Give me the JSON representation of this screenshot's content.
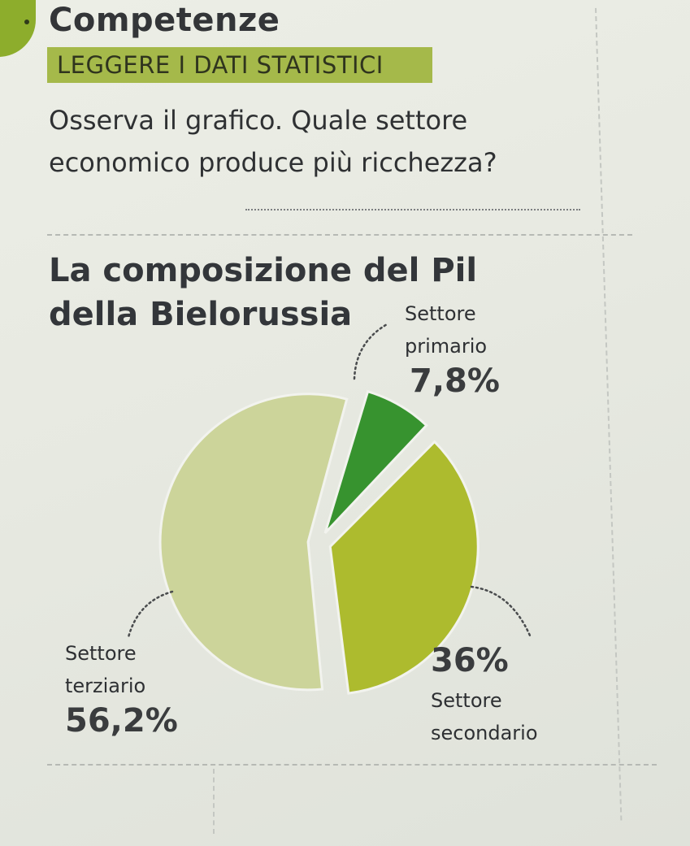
{
  "header": {
    "section_title": "Competenze",
    "tag_label": "LEGGERE I DATI STATISTICI",
    "question": "Osserva il grafico. Quale settore economico produce più ricchezza?"
  },
  "chart_data": {
    "type": "pie",
    "title": "La composizione del Pil della Bielorussia",
    "title_lines": [
      "La composizione del Pil",
      "della Bielorussia"
    ],
    "slices": [
      {
        "label": "Settore primario",
        "label_lines": [
          "Settore",
          "primario"
        ],
        "value": 7.8,
        "display": "7,8%",
        "color": "#37932f"
      },
      {
        "label": "Settore secondario",
        "label_lines": [
          "Settore",
          "secondario"
        ],
        "value": 36,
        "display": "36%",
        "color": "#adbb2e"
      },
      {
        "label": "Settore terziario",
        "label_lines": [
          "Settore",
          "terziario"
        ],
        "value": 56.2,
        "display": "56,2%",
        "color": "#ccd49a"
      }
    ]
  }
}
